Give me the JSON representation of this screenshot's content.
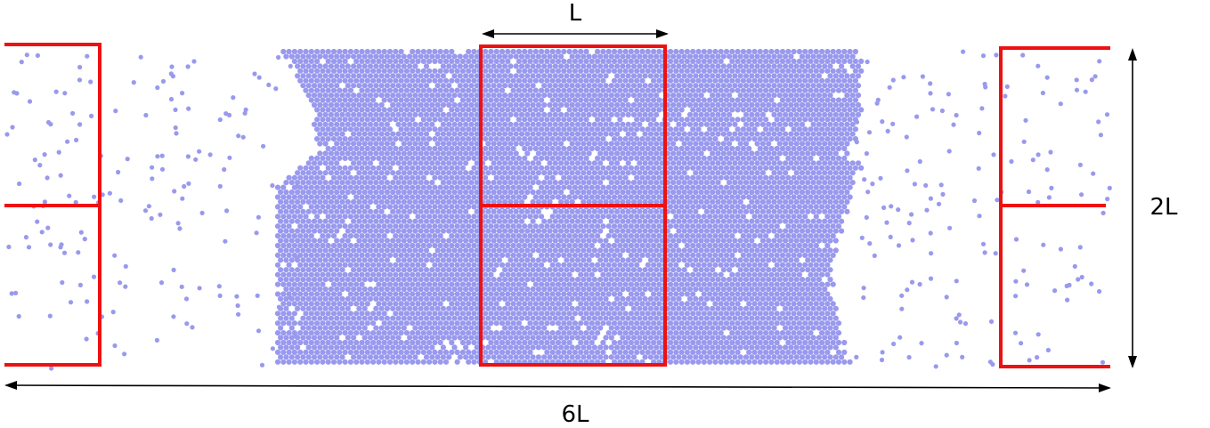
{
  "labels": {
    "length_top": "L",
    "height_right": "2L",
    "width_bottom": "6L"
  },
  "colors": {
    "particle": "#9999ee",
    "box_stroke": "#ee1111",
    "arrow": "#000000",
    "background": "#ffffff"
  },
  "boxes": {
    "left": "sample-box-left",
    "center": "sample-box-center",
    "right": "sample-box-right"
  },
  "particles": {
    "dense_fraction_band": "liquid-slab",
    "dilute_regions": "gas-phase"
  }
}
